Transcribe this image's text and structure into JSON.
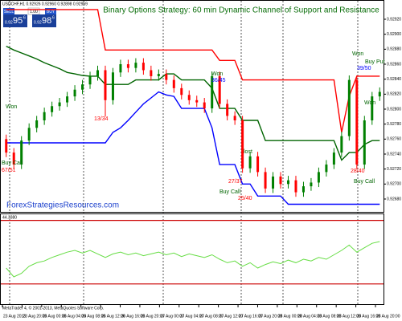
{
  "header": {
    "symbol_line": "USDCHF,H1  0.92926 0.92960 0.92898 0.92959",
    "sell_label": "SELL",
    "sell_small": "0.92",
    "sell_big": "95",
    "sell_sup": "6",
    "buy_label": "BUY",
    "buy_small": "0.92",
    "buy_big": "98",
    "buy_sup": "6",
    "lot": "1.00"
  },
  "watermark": "ForexStrategiesResources.com",
  "footer": "MetaTrader 4, © 2001-2013, MetaQuotes Software Corp.",
  "chart_data": [
    {
      "type": "candlestick",
      "title": "Binary Options Strategy:   60 min Dynamic Channel of Support and Resistance",
      "open": [
        0.9276,
        0.92742,
        0.92726,
        0.92758,
        0.92775,
        0.92785,
        0.92796,
        0.92804,
        0.92809,
        0.92817,
        0.92826,
        0.92833,
        0.92844,
        0.92852,
        0.92812,
        0.92849,
        0.9286,
        0.92855,
        0.92862,
        0.92852,
        0.92844,
        0.92847,
        0.92839,
        0.92828,
        0.92819,
        0.92812,
        0.92809,
        0.92801,
        0.92844,
        0.92807,
        0.92791,
        0.92785,
        0.92721,
        0.92737,
        0.92716,
        0.92694,
        0.9271,
        0.927,
        0.92705,
        0.92689,
        0.92697,
        0.92702,
        0.92716,
        0.92726,
        0.92742,
        0.92764,
        0.92839,
        0.92726,
        0.92785,
        0.92817
      ],
      "high": [
        0.92766,
        0.92748,
        0.92764,
        0.92781,
        0.92791,
        0.92802,
        0.9281,
        0.92815,
        0.92823,
        0.92832,
        0.92839,
        0.9285,
        0.92858,
        0.92858,
        0.92855,
        0.92866,
        0.92866,
        0.92868,
        0.92868,
        0.92858,
        0.92853,
        0.92853,
        0.92845,
        0.92834,
        0.92825,
        0.92818,
        0.92815,
        0.9285,
        0.9285,
        0.92813,
        0.92797,
        0.92791,
        0.92743,
        0.92743,
        0.92722,
        0.92716,
        0.92716,
        0.92711,
        0.92711,
        0.92703,
        0.92708,
        0.92722,
        0.92732,
        0.92748,
        0.9277,
        0.92845,
        0.92845,
        0.92791,
        0.92823,
        0.92829
      ],
      "low": [
        0.92736,
        0.9272,
        0.9272,
        0.92752,
        0.92769,
        0.92779,
        0.9279,
        0.92798,
        0.92803,
        0.92811,
        0.9282,
        0.92827,
        0.92838,
        0.9279,
        0.92806,
        0.92843,
        0.92849,
        0.92849,
        0.92846,
        0.92838,
        0.92838,
        0.92833,
        0.92822,
        0.92813,
        0.92806,
        0.92803,
        0.92795,
        0.92795,
        0.92801,
        0.92785,
        0.92779,
        0.92715,
        0.92715,
        0.9271,
        0.92688,
        0.92688,
        0.92694,
        0.92694,
        0.92683,
        0.92683,
        0.92691,
        0.92696,
        0.9271,
        0.9272,
        0.92736,
        0.92758,
        0.9272,
        0.9272,
        0.92779,
        0.92811
      ],
      "close": [
        0.92742,
        0.92726,
        0.92758,
        0.92775,
        0.92785,
        0.92796,
        0.92804,
        0.92809,
        0.92817,
        0.92826,
        0.92833,
        0.92844,
        0.92852,
        0.92812,
        0.92849,
        0.9286,
        0.92855,
        0.92862,
        0.92852,
        0.92844,
        0.92847,
        0.92839,
        0.92828,
        0.92819,
        0.92812,
        0.92809,
        0.92801,
        0.92844,
        0.92807,
        0.92791,
        0.92785,
        0.92721,
        0.92737,
        0.92716,
        0.92694,
        0.9271,
        0.927,
        0.92705,
        0.92689,
        0.92697,
        0.92702,
        0.92716,
        0.92726,
        0.92742,
        0.92764,
        0.92839,
        0.92726,
        0.92785,
        0.92817,
        0.92823
      ],
      "up_color": "#008000",
      "down_color": "#ff0000",
      "channels": [
        {
          "color": "#ff0000",
          "values": [
            0.92933,
            0.92933,
            0.92933,
            0.92933,
            0.92933,
            0.92933,
            0.92933,
            0.92933,
            0.92933,
            0.92933,
            0.92933,
            0.92933,
            0.92933,
            0.92879,
            0.92879,
            0.92879,
            0.92879,
            0.92879,
            0.92879,
            0.92879,
            0.92879,
            0.92879,
            0.92879,
            0.92879,
            0.92879,
            0.92879,
            0.92879,
            0.92879,
            0.92865,
            0.92865,
            0.92865,
            0.92839,
            0.92839,
            0.92839,
            0.92839,
            0.92839,
            0.92839,
            0.92839,
            0.92839,
            0.92839,
            0.92839,
            0.92839,
            0.92839,
            0.92839,
            0.92769,
            0.92817,
            0.92844,
            0.92844,
            0.92844,
            0.92844
          ]
        },
        {
          "color": "#006400",
          "values": [
            0.92884,
            0.92879,
            0.92875,
            0.92871,
            0.92867,
            0.92862,
            0.92858,
            0.92854,
            0.92849,
            0.92847,
            0.92845,
            0.92844,
            0.92844,
            0.92833,
            0.92833,
            0.92833,
            0.92833,
            0.92839,
            0.92839,
            0.92839,
            0.92839,
            0.92847,
            0.92847,
            0.92839,
            0.92839,
            0.92839,
            0.92839,
            0.92828,
            0.92801,
            0.92801,
            0.92801,
            0.92785,
            0.92785,
            0.92785,
            0.92758,
            0.92758,
            0.92758,
            0.92758,
            0.92758,
            0.92758,
            0.92758,
            0.92758,
            0.92758,
            0.92758,
            0.92732,
            0.92742,
            0.92742,
            0.92753,
            0.92758,
            0.92758
          ]
        },
        {
          "color": "#0000ff",
          "values": [
            0.92755,
            0.92755,
            0.92755,
            0.92755,
            0.92755,
            0.92755,
            0.92755,
            0.92755,
            0.92755,
            0.92755,
            0.92755,
            0.92755,
            0.92755,
            0.92755,
            0.92769,
            0.92775,
            0.92785,
            0.92796,
            0.92807,
            0.92815,
            0.92823,
            0.92819,
            0.92817,
            0.92801,
            0.92801,
            0.92801,
            0.92801,
            0.92775,
            0.92726,
            0.92726,
            0.92726,
            0.927,
            0.927,
            0.92684,
            0.92684,
            0.92684,
            0.92684,
            0.92673,
            0.92673,
            0.92673,
            0.92673,
            0.92673,
            0.92673,
            0.92673,
            0.92673,
            0.92673,
            0.92673,
            0.92673,
            0.92673,
            0.92673
          ]
        }
      ],
      "ylim": [
        0.92665,
        0.92935
      ],
      "yticks": [
        {
          "value": 0.9268,
          "label": "0.92680"
        },
        {
          "value": 0.927,
          "label": "0.92700"
        },
        {
          "value": 0.9272,
          "label": "0.92720"
        },
        {
          "value": 0.9274,
          "label": "0.92740"
        },
        {
          "value": 0.9276,
          "label": "0.92760"
        },
        {
          "value": 0.9278,
          "label": "0.92780"
        },
        {
          "value": 0.928,
          "label": "0.92800"
        },
        {
          "value": 0.9282,
          "label": "0.92820"
        },
        {
          "value": 0.9284,
          "label": "0.92840"
        },
        {
          "value": 0.9286,
          "label": "0.92860"
        },
        {
          "value": 0.9288,
          "label": "0.92880"
        },
        {
          "value": 0.929,
          "label": "0.92900"
        },
        {
          "value": 0.9292,
          "label": "0.92920"
        }
      ],
      "xtick_labels": [
        "23 Aug 2013",
        "23 Aug 20:00",
        "26 Aug 00:00",
        "26 Aug 04:00",
        "26 Aug 08:00",
        "26 Aug 12:00",
        "26 Aug 16:00",
        "26 Aug 20:00",
        "27 Aug 00:00",
        "27 Aug 04:00",
        "27 Aug 08:00",
        "27 Aug 12:00",
        "27 Aug 16:00",
        "27 Aug 20:00",
        "28 Aug 00:00",
        "28 Aug 04:00",
        "28 Aug 08:00",
        "28 Aug 12:00",
        "28 Aug 16:00",
        "28 Aug 20:00"
      ],
      "annotations": [
        {
          "text": "Won",
          "color": "#006400"
        },
        {
          "text": "Buy Call",
          "color": "#006400"
        },
        {
          "text": "67/51",
          "color": "#ff0000"
        },
        {
          "text": "13/34",
          "color": "#ff0000"
        },
        {
          "text": "Won",
          "color": "#006400"
        },
        {
          "text": "36/45",
          "color": "#0000ff"
        },
        {
          "text": "27/37",
          "color": "#ff0000"
        },
        {
          "text": "Buy Call",
          "color": "#006400"
        },
        {
          "text": "lost",
          "color": "#006400"
        },
        {
          "text": "25/40",
          "color": "#ff0000"
        },
        {
          "text": "Won",
          "color": "#006400"
        },
        {
          "text": "Buy Put",
          "color": "#006400"
        },
        {
          "text": "39/50",
          "color": "#0000ff"
        },
        {
          "text": "Won",
          "color": "#006400"
        },
        {
          "text": "28/40",
          "color": "#ff0000"
        },
        {
          "text": "Buy Call",
          "color": "#006400"
        }
      ]
    },
    {
      "type": "line",
      "label": "44.3380",
      "color": "#66dd44",
      "values": [
        40,
        30,
        34,
        42,
        46,
        48,
        52,
        55,
        58,
        60,
        57,
        60,
        56,
        52,
        56,
        58,
        55,
        57,
        54,
        56,
        58,
        55,
        57,
        53,
        56,
        54,
        52,
        55,
        50,
        46,
        48,
        42,
        46,
        40,
        44,
        47,
        45,
        49,
        46,
        50,
        48,
        52,
        50,
        55,
        60,
        66,
        58,
        63,
        68,
        70
      ],
      "ylim": [
        0,
        100
      ],
      "levels": [
        94,
        22
      ],
      "level_color": "#cc0000"
    }
  ]
}
